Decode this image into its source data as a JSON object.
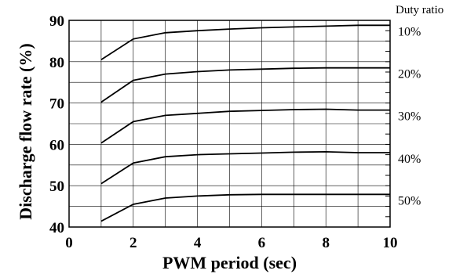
{
  "chart_data": {
    "type": "line",
    "xlabel": "PWM period (sec)",
    "ylabel": "Discharge flow rate (%)",
    "xlim": [
      0,
      10
    ],
    "ylim": [
      40,
      90
    ],
    "x_ticks": [
      "0",
      "2",
      "4",
      "6",
      "8",
      "10"
    ],
    "y_ticks": [
      "40",
      "50",
      "60",
      "70",
      "80",
      "90"
    ],
    "grid": true,
    "right_annotation_title": "Duty ratio",
    "x": [
      1,
      2,
      3,
      4,
      5,
      6,
      7,
      8,
      9,
      10
    ],
    "series": [
      {
        "name": "10%",
        "values": [
          80.5,
          85.5,
          87,
          87.5,
          87.9,
          88.2,
          88.4,
          88.6,
          88.8,
          88.8
        ]
      },
      {
        "name": "20%",
        "values": [
          70.2,
          75.5,
          77,
          77.6,
          78,
          78.2,
          78.4,
          78.5,
          78.5,
          78.5
        ]
      },
      {
        "name": "30%",
        "values": [
          60.3,
          65.5,
          67,
          67.5,
          68,
          68.2,
          68.4,
          68.5,
          68.3,
          68.3
        ]
      },
      {
        "name": "40%",
        "values": [
          50.5,
          55.5,
          57,
          57.5,
          57.7,
          57.9,
          58.1,
          58.2,
          58,
          58
        ]
      },
      {
        "name": "50%",
        "values": [
          41.4,
          45.5,
          47,
          47.5,
          47.8,
          47.9,
          47.9,
          47.9,
          47.9,
          47.9
        ]
      }
    ]
  }
}
